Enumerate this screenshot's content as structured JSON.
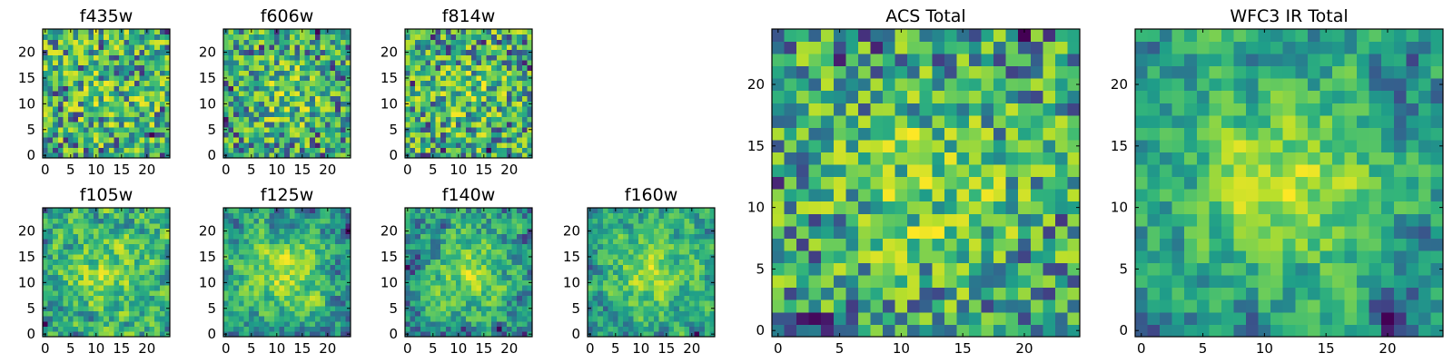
{
  "chart_data": [
    {
      "type": "heatmap",
      "title": "f435w",
      "colormap": "viridis",
      "grid_size": [
        25,
        25
      ],
      "x_ticks": [
        "0",
        "5",
        "10",
        "15",
        "20"
      ],
      "y_ticks": [
        "0",
        "5",
        "10",
        "15",
        "20"
      ],
      "xlim": [
        -0.5,
        24.5
      ],
      "ylim": [
        -0.5,
        24.5
      ],
      "seed": 11,
      "smooth": 0,
      "center_boost": 0.1
    },
    {
      "type": "heatmap",
      "title": "f606w",
      "colormap": "viridis",
      "grid_size": [
        25,
        25
      ],
      "x_ticks": [
        "0",
        "5",
        "10",
        "15",
        "20"
      ],
      "y_ticks": [
        "0",
        "5",
        "10",
        "15",
        "20"
      ],
      "xlim": [
        -0.5,
        24.5
      ],
      "ylim": [
        -0.5,
        24.5
      ],
      "seed": 23,
      "smooth": 0,
      "center_boost": 0.25
    },
    {
      "type": "heatmap",
      "title": "f814w",
      "colormap": "viridis",
      "grid_size": [
        25,
        25
      ],
      "x_ticks": [
        "0",
        "5",
        "10",
        "15",
        "20"
      ],
      "y_ticks": [
        "0",
        "5",
        "10",
        "15",
        "20"
      ],
      "xlim": [
        -0.5,
        24.5
      ],
      "ylim": [
        -0.5,
        24.5
      ],
      "seed": 37,
      "smooth": 0,
      "center_boost": 0.15
    },
    {
      "type": "heatmap",
      "title": "f105w",
      "colormap": "viridis",
      "grid_size": [
        25,
        25
      ],
      "x_ticks": [
        "0",
        "5",
        "10",
        "15",
        "20"
      ],
      "y_ticks": [
        "0",
        "5",
        "10",
        "15",
        "20"
      ],
      "xlim": [
        -0.5,
        24.5
      ],
      "ylim": [
        -0.5,
        24.5
      ],
      "seed": 41,
      "smooth": 1,
      "center_boost": 0.3
    },
    {
      "type": "heatmap",
      "title": "f125w",
      "colormap": "viridis",
      "grid_size": [
        25,
        25
      ],
      "x_ticks": [
        "0",
        "5",
        "10",
        "15",
        "20"
      ],
      "y_ticks": [
        "0",
        "5",
        "10",
        "15",
        "20"
      ],
      "xlim": [
        -0.5,
        24.5
      ],
      "ylim": [
        -0.5,
        24.5
      ],
      "seed": 53,
      "smooth": 1,
      "center_boost": 0.45
    },
    {
      "type": "heatmap",
      "title": "f140w",
      "colormap": "viridis",
      "grid_size": [
        25,
        25
      ],
      "x_ticks": [
        "0",
        "5",
        "10",
        "15",
        "20"
      ],
      "y_ticks": [
        "0",
        "5",
        "10",
        "15",
        "20"
      ],
      "xlim": [
        -0.5,
        24.5
      ],
      "ylim": [
        -0.5,
        24.5
      ],
      "seed": 67,
      "smooth": 1,
      "center_boost": 0.4
    },
    {
      "type": "heatmap",
      "title": "f160w",
      "colormap": "viridis",
      "grid_size": [
        25,
        25
      ],
      "x_ticks": [
        "0",
        "5",
        "10",
        "15",
        "20"
      ],
      "y_ticks": [
        "0",
        "5",
        "10",
        "15",
        "20"
      ],
      "xlim": [
        -0.5,
        24.5
      ],
      "ylim": [
        -0.5,
        24.5
      ],
      "seed": 79,
      "smooth": 1,
      "center_boost": 0.45
    },
    {
      "type": "heatmap",
      "title": "ACS Total",
      "colormap": "viridis",
      "grid_size": [
        25,
        25
      ],
      "x_ticks": [
        "0",
        "5",
        "10",
        "15",
        "20"
      ],
      "y_ticks": [
        "0",
        "5",
        "10",
        "15",
        "20"
      ],
      "xlim": [
        -0.5,
        24.5
      ],
      "ylim": [
        -0.5,
        24.5
      ],
      "seed": 97,
      "smooth": 0,
      "center_boost": 0.3
    },
    {
      "type": "heatmap",
      "title": "WFC3 IR Total",
      "colormap": "viridis",
      "grid_size": [
        25,
        25
      ],
      "x_ticks": [
        "0",
        "5",
        "10",
        "15",
        "20"
      ],
      "y_ticks": [
        "0",
        "5",
        "10",
        "15",
        "20"
      ],
      "xlim": [
        -0.5,
        24.5
      ],
      "ylim": [
        -0.5,
        24.5
      ],
      "seed": 131,
      "smooth": 1,
      "center_boost": 0.55
    }
  ]
}
